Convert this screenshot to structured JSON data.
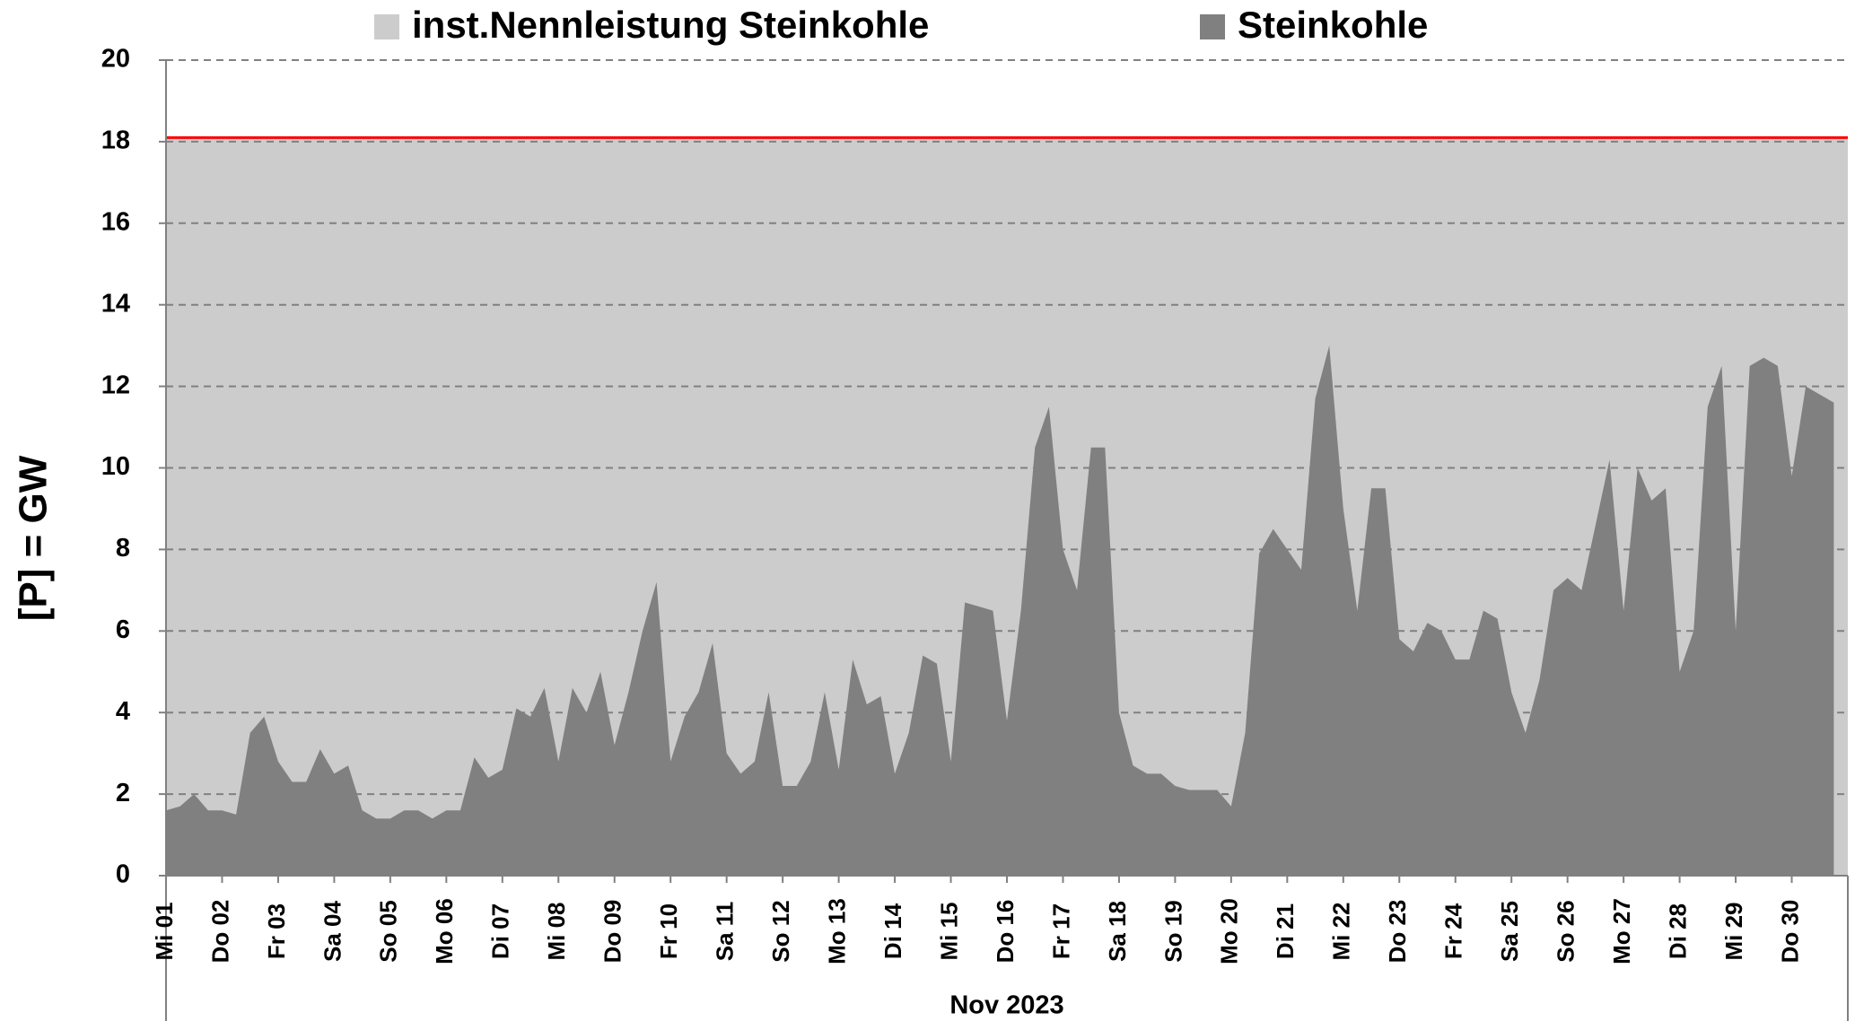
{
  "chart_data": {
    "type": "area",
    "y_axis_label": "[P]  =  GW",
    "x_axis_label": "Nov 2023",
    "categories": [
      "Mi 01",
      null,
      null,
      null,
      "Do 02",
      null,
      null,
      null,
      "Fr 03",
      null,
      null,
      null,
      "Sa 04",
      null,
      null,
      null,
      "So 05",
      null,
      null,
      null,
      "Mo 06",
      null,
      null,
      null,
      "Di 07",
      null,
      null,
      null,
      "Mi 08",
      null,
      null,
      null,
      "Do 09",
      null,
      null,
      null,
      "Fr 10",
      null,
      null,
      null,
      "Sa 11",
      null,
      null,
      null,
      "So 12",
      null,
      null,
      null,
      "Mo 13",
      null,
      null,
      null,
      "Di 14",
      null,
      null,
      null,
      "Mi 15",
      null,
      null,
      null,
      "Do 16",
      null,
      null,
      null,
      "Fr 17",
      null,
      null,
      null,
      "Sa 18",
      null,
      null,
      null,
      "So 19",
      null,
      null,
      null,
      "Mo 20",
      null,
      null,
      null,
      "Di 21",
      null,
      null,
      null,
      "Mi 22",
      null,
      null,
      null,
      "Do 23",
      null,
      null,
      null,
      "Fr 24",
      null,
      null,
      null,
      "Sa 25",
      null,
      null,
      null,
      "So 26",
      null,
      null,
      null,
      "Mo 27",
      null,
      null,
      null,
      "Di 28",
      null,
      null,
      null,
      "Mi 29",
      null,
      null,
      null,
      "Do 30",
      null,
      null,
      null
    ],
    "series": [
      {
        "name": "inst.Nennleistung Steinkohle",
        "color": "#cccccc",
        "edge_color": "#ff0000",
        "values": [
          18.1,
          18.1,
          18.1,
          18.1,
          18.1,
          18.1,
          18.1,
          18.1,
          18.1,
          18.1,
          18.1,
          18.1,
          18.1,
          18.1,
          18.1,
          18.1,
          18.1,
          18.1,
          18.1,
          18.1,
          18.1,
          18.1,
          18.1,
          18.1,
          18.1,
          18.1,
          18.1,
          18.1,
          18.1,
          18.1,
          18.1,
          18.1,
          18.1,
          18.1,
          18.1,
          18.1,
          18.1,
          18.1,
          18.1,
          18.1,
          18.1,
          18.1,
          18.1,
          18.1,
          18.1,
          18.1,
          18.1,
          18.1,
          18.1,
          18.1,
          18.1,
          18.1,
          18.1,
          18.1,
          18.1,
          18.1,
          18.1,
          18.1,
          18.1,
          18.1,
          18.1,
          18.1,
          18.1,
          18.1,
          18.1,
          18.1,
          18.1,
          18.1,
          18.1,
          18.1,
          18.1,
          18.1,
          18.1,
          18.1,
          18.1,
          18.1,
          18.1,
          18.1,
          18.1,
          18.1,
          18.1,
          18.1,
          18.1,
          18.1,
          18.1,
          18.1,
          18.1,
          18.1,
          18.1,
          18.1,
          18.1,
          18.1,
          18.1,
          18.1,
          18.1,
          18.1,
          18.1,
          18.1,
          18.1,
          18.1,
          18.1,
          18.1,
          18.1,
          18.1,
          18.1,
          18.1,
          18.1,
          18.1,
          18.1,
          18.1,
          18.1,
          18.1,
          18.1,
          18.1,
          18.1,
          18.1,
          18.1,
          18.1,
          18.1,
          18.1
        ]
      },
      {
        "name": "Steinkohle",
        "color": "#808080",
        "values": [
          1.6,
          1.7,
          2.0,
          1.6,
          1.6,
          1.5,
          3.5,
          3.9,
          2.8,
          2.3,
          2.3,
          3.1,
          2.5,
          2.7,
          1.6,
          1.4,
          1.4,
          1.6,
          1.6,
          1.4,
          1.6,
          1.6,
          2.9,
          2.4,
          2.6,
          4.1,
          3.9,
          4.6,
          2.8,
          4.6,
          4.0,
          5.0,
          3.2,
          4.5,
          6.0,
          7.2,
          2.8,
          3.9,
          4.5,
          5.7,
          3.0,
          2.5,
          2.8,
          4.5,
          2.2,
          2.2,
          2.8,
          4.5,
          2.6,
          5.3,
          4.2,
          4.4,
          2.5,
          3.5,
          5.4,
          5.2,
          2.8,
          6.7,
          6.6,
          6.5,
          3.8,
          6.5,
          10.5,
          11.5,
          8.0,
          7.0,
          10.5,
          10.5,
          4.0,
          2.7,
          2.5,
          2.5,
          2.2,
          2.1,
          2.1,
          2.1,
          1.7,
          3.5,
          7.9,
          8.5,
          8.0,
          7.5,
          11.7,
          13.0,
          9.0,
          6.5,
          9.5,
          9.5,
          5.8,
          5.5,
          6.2,
          6.0,
          5.3,
          5.3,
          6.5,
          6.3,
          4.5,
          3.5,
          4.8,
          7.0,
          7.3,
          7.0,
          8.6,
          10.2,
          6.5,
          10.0,
          9.2,
          9.5,
          5.0,
          6.0,
          11.5,
          12.5,
          6.0,
          12.5,
          12.7,
          12.5,
          9.8,
          12.0,
          11.8,
          11.6
        ]
      }
    ],
    "ylim": [
      0,
      20
    ],
    "yticks": [
      0,
      2,
      4,
      6,
      8,
      10,
      12,
      14,
      16,
      18,
      20
    ],
    "grid": true,
    "legend": "top"
  }
}
